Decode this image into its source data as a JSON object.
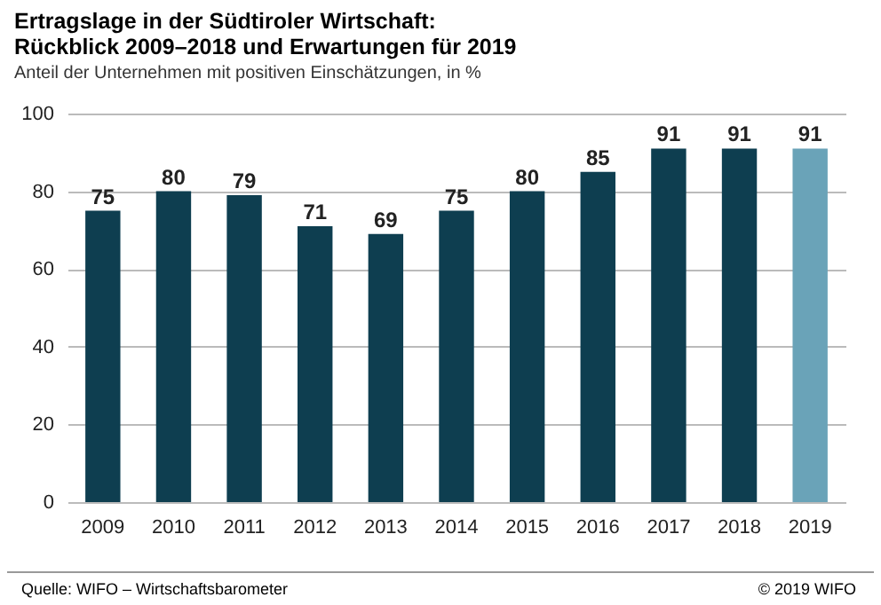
{
  "chart_data": {
    "type": "bar",
    "title": "Ertragslage in der Südtiroler Wirtschaft:\nRückblick 2009–2018 und Erwartungen für 2019",
    "subtitle": "Anteil der Unternehmen mit positiven Einschätzungen, in %",
    "categories": [
      "2009",
      "2010",
      "2011",
      "2012",
      "2013",
      "2014",
      "2015",
      "2016",
      "2017",
      "2018",
      "2019"
    ],
    "values": [
      75,
      80,
      79,
      71,
      69,
      75,
      80,
      85,
      91,
      91,
      91
    ],
    "colors": [
      "#0e3e50",
      "#0e3e50",
      "#0e3e50",
      "#0e3e50",
      "#0e3e50",
      "#0e3e50",
      "#0e3e50",
      "#0e3e50",
      "#0e3e50",
      "#0e3e50",
      "#6aa3b8"
    ],
    "ylim": [
      0,
      100
    ],
    "yticks": [
      0,
      20,
      40,
      60,
      80,
      100
    ],
    "grid": "y",
    "data_labels": true,
    "annotations": [
      "Quelle: WIFO – Wirtschaftsbarometer",
      "© 2019 WIFO"
    ]
  }
}
